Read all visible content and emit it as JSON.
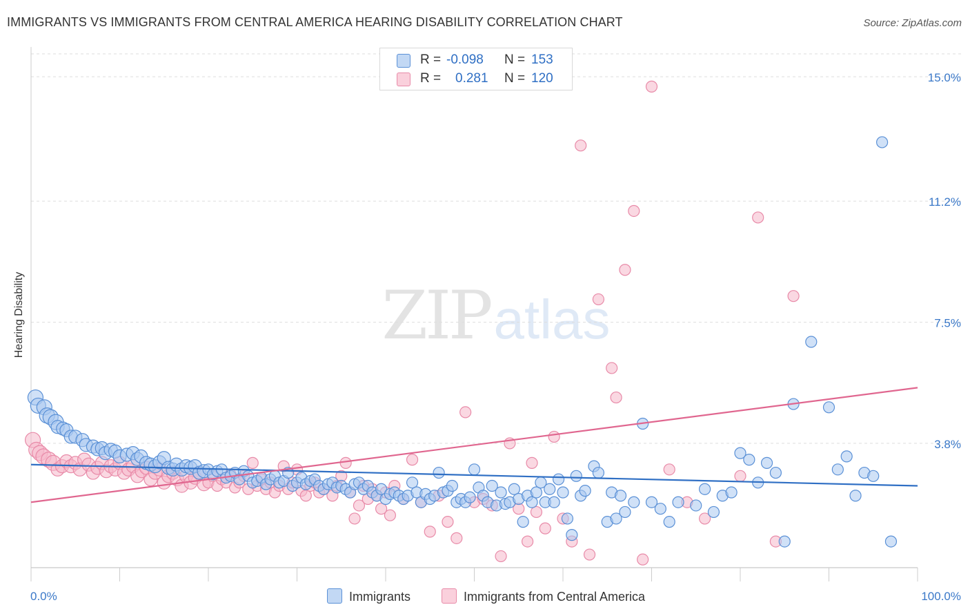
{
  "title": "IMMIGRANTS VS IMMIGRANTS FROM CENTRAL AMERICA HEARING DISABILITY CORRELATION CHART",
  "source": "Source: ZipAtlas.com",
  "watermark": {
    "zip": "ZIP",
    "atlas": "atlas"
  },
  "colors": {
    "blue_fill": "#a9c8f0",
    "blue_stroke": "#5a90d6",
    "blue_line": "#2f6fc4",
    "pink_fill": "#f6b8ca",
    "pink_stroke": "#e88aa8",
    "pink_line": "#e0668f",
    "axis_label": "#3a78c8",
    "grid": "#dddddd"
  },
  "legend": {
    "r_label": "R =",
    "n_label": "N =",
    "rows": [
      {
        "series": "Immigrants",
        "r": "-0.098",
        "n": "153"
      },
      {
        "series": "Immigrants from Central America",
        "r": "0.281",
        "n": "120"
      }
    ]
  },
  "chart_data": {
    "type": "scatter",
    "title": "IMMIGRANTS VS IMMIGRANTS FROM CENTRAL AMERICA HEARING DISABILITY CORRELATION CHART",
    "xlabel": "",
    "ylabel": "Hearing Disability",
    "xlim": [
      0,
      100
    ],
    "ylim": [
      0,
      15.7
    ],
    "x_tick_labels": [
      "0.0%",
      "100.0%"
    ],
    "y_ticks": [
      3.8,
      7.5,
      11.2,
      15.0
    ],
    "y_tick_labels": [
      "3.8%",
      "7.5%",
      "11.2%",
      "15.0%"
    ],
    "grid": "horizontal dashed",
    "legend_position": "top-center",
    "series": [
      {
        "name": "Immigrants",
        "r": -0.098,
        "n": 153,
        "trend": {
          "x": [
            0,
            100
          ],
          "y": [
            3.15,
            2.5
          ]
        },
        "points": [
          [
            0.5,
            5.2
          ],
          [
            0.8,
            4.95
          ],
          [
            1.5,
            4.9
          ],
          [
            1.8,
            4.65
          ],
          [
            2.2,
            4.6
          ],
          [
            2.8,
            4.45
          ],
          [
            3.0,
            4.3
          ],
          [
            3.6,
            4.25
          ],
          [
            4.0,
            4.2
          ],
          [
            4.5,
            4.0
          ],
          [
            5.0,
            4.0
          ],
          [
            5.8,
            3.9
          ],
          [
            6.2,
            3.75
          ],
          [
            7.0,
            3.7
          ],
          [
            7.5,
            3.62
          ],
          [
            8.0,
            3.65
          ],
          [
            8.4,
            3.5
          ],
          [
            9.0,
            3.6
          ],
          [
            9.5,
            3.55
          ],
          [
            10.0,
            3.4
          ],
          [
            10.8,
            3.45
          ],
          [
            11.5,
            3.5
          ],
          [
            12.0,
            3.32
          ],
          [
            12.4,
            3.4
          ],
          [
            13.0,
            3.2
          ],
          [
            13.5,
            3.15
          ],
          [
            14.0,
            3.1
          ],
          [
            14.5,
            3.22
          ],
          [
            15.0,
            3.35
          ],
          [
            15.5,
            3.05
          ],
          [
            16.0,
            3.0
          ],
          [
            16.4,
            3.15
          ],
          [
            17.0,
            3.0
          ],
          [
            17.5,
            3.1
          ],
          [
            18.0,
            3.05
          ],
          [
            18.5,
            3.1
          ],
          [
            19.0,
            2.9
          ],
          [
            19.5,
            2.95
          ],
          [
            20.0,
            3.0
          ],
          [
            20.5,
            2.85
          ],
          [
            21.0,
            2.95
          ],
          [
            21.5,
            3.0
          ],
          [
            22.0,
            2.75
          ],
          [
            22.5,
            2.8
          ],
          [
            23.0,
            2.9
          ],
          [
            23.5,
            2.7
          ],
          [
            24.0,
            2.95
          ],
          [
            24.5,
            2.8
          ],
          [
            25.0,
            2.6
          ],
          [
            25.5,
            2.65
          ],
          [
            26.0,
            2.75
          ],
          [
            26.5,
            2.55
          ],
          [
            27.0,
            2.7
          ],
          [
            27.5,
            2.8
          ],
          [
            28.0,
            2.6
          ],
          [
            28.5,
            2.65
          ],
          [
            29.0,
            2.9
          ],
          [
            29.5,
            2.5
          ],
          [
            30.0,
            2.6
          ],
          [
            30.5,
            2.75
          ],
          [
            31.0,
            2.55
          ],
          [
            31.5,
            2.65
          ],
          [
            32.0,
            2.7
          ],
          [
            32.5,
            2.5
          ],
          [
            33.0,
            2.4
          ],
          [
            33.5,
            2.55
          ],
          [
            34.0,
            2.6
          ],
          [
            34.5,
            2.45
          ],
          [
            35.0,
            2.5
          ],
          [
            35.5,
            2.4
          ],
          [
            36.0,
            2.3
          ],
          [
            36.5,
            2.55
          ],
          [
            37.0,
            2.6
          ],
          [
            37.5,
            2.4
          ],
          [
            38.0,
            2.5
          ],
          [
            38.5,
            2.3
          ],
          [
            39.0,
            2.2
          ],
          [
            39.5,
            2.4
          ],
          [
            40.0,
            2.1
          ],
          [
            40.5,
            2.25
          ],
          [
            41.0,
            2.3
          ],
          [
            41.5,
            2.2
          ],
          [
            42.0,
            2.1
          ],
          [
            42.5,
            2.2
          ],
          [
            43.0,
            2.6
          ],
          [
            43.5,
            2.3
          ],
          [
            44.0,
            2.0
          ],
          [
            44.5,
            2.25
          ],
          [
            45.0,
            2.1
          ],
          [
            45.5,
            2.2
          ],
          [
            46.0,
            2.9
          ],
          [
            46.5,
            2.3
          ],
          [
            47.0,
            2.35
          ],
          [
            47.5,
            2.5
          ],
          [
            48.0,
            2.0
          ],
          [
            48.5,
            2.1
          ],
          [
            49.0,
            2.0
          ],
          [
            49.5,
            2.15
          ],
          [
            50.0,
            3.0
          ],
          [
            50.5,
            2.45
          ],
          [
            51.0,
            2.2
          ],
          [
            51.5,
            2.0
          ],
          [
            52.0,
            2.5
          ],
          [
            52.5,
            1.9
          ],
          [
            53.0,
            2.3
          ],
          [
            53.5,
            1.95
          ],
          [
            54.0,
            2.0
          ],
          [
            54.5,
            2.4
          ],
          [
            55.0,
            2.1
          ],
          [
            55.5,
            1.4
          ],
          [
            56.0,
            2.2
          ],
          [
            56.5,
            2.0
          ],
          [
            57.0,
            2.3
          ],
          [
            57.5,
            2.6
          ],
          [
            58.0,
            2.0
          ],
          [
            58.5,
            2.4
          ],
          [
            59.0,
            2.0
          ],
          [
            59.5,
            2.7
          ],
          [
            60.0,
            2.3
          ],
          [
            60.5,
            1.5
          ],
          [
            61.0,
            1.0
          ],
          [
            61.5,
            2.8
          ],
          [
            62.0,
            2.2
          ],
          [
            62.5,
            2.35
          ],
          [
            63.5,
            3.1
          ],
          [
            64.0,
            2.9
          ],
          [
            65.0,
            1.4
          ],
          [
            65.5,
            2.3
          ],
          [
            66.0,
            1.5
          ],
          [
            66.5,
            2.2
          ],
          [
            67.0,
            1.7
          ],
          [
            68.0,
            2.0
          ],
          [
            69.0,
            4.4
          ],
          [
            70.0,
            2.0
          ],
          [
            71.0,
            1.8
          ],
          [
            72.0,
            1.4
          ],
          [
            73.0,
            2.0
          ],
          [
            75.0,
            1.9
          ],
          [
            76.0,
            2.4
          ],
          [
            77.0,
            1.7
          ],
          [
            78.0,
            2.2
          ],
          [
            79.0,
            2.3
          ],
          [
            80.0,
            3.5
          ],
          [
            81.0,
            3.3
          ],
          [
            82.0,
            2.6
          ],
          [
            83.0,
            3.2
          ],
          [
            84.0,
            2.9
          ],
          [
            85.0,
            0.8
          ],
          [
            86.0,
            5.0
          ],
          [
            88.0,
            6.9
          ],
          [
            90.0,
            4.9
          ],
          [
            91.0,
            3.0
          ],
          [
            92.0,
            3.4
          ],
          [
            93.0,
            2.2
          ],
          [
            94.0,
            2.9
          ],
          [
            95.0,
            2.8
          ],
          [
            96.0,
            13.0
          ],
          [
            97.0,
            0.8
          ]
        ]
      },
      {
        "name": "Immigrants from Central America",
        "r": 0.281,
        "n": 120,
        "trend": {
          "x": [
            0,
            100
          ],
          "y": [
            2.0,
            5.5
          ]
        },
        "points": [
          [
            0.2,
            3.9
          ],
          [
            0.6,
            3.6
          ],
          [
            1.0,
            3.5
          ],
          [
            1.4,
            3.4
          ],
          [
            2.0,
            3.3
          ],
          [
            2.5,
            3.2
          ],
          [
            3.0,
            3.0
          ],
          [
            3.5,
            3.1
          ],
          [
            4.0,
            3.25
          ],
          [
            4.5,
            3.1
          ],
          [
            5.0,
            3.2
          ],
          [
            5.5,
            3.0
          ],
          [
            6.0,
            3.3
          ],
          [
            6.5,
            3.15
          ],
          [
            7.0,
            2.9
          ],
          [
            7.5,
            3.05
          ],
          [
            8.0,
            3.2
          ],
          [
            8.5,
            2.95
          ],
          [
            9.0,
            3.1
          ],
          [
            9.5,
            3.0
          ],
          [
            10.0,
            3.2
          ],
          [
            10.5,
            2.9
          ],
          [
            11.0,
            3.0
          ],
          [
            11.5,
            3.1
          ],
          [
            12.0,
            2.8
          ],
          [
            12.5,
            2.95
          ],
          [
            13.0,
            3.05
          ],
          [
            13.5,
            2.7
          ],
          [
            14.0,
            2.9
          ],
          [
            14.5,
            3.0
          ],
          [
            15.0,
            2.6
          ],
          [
            15.5,
            2.8
          ],
          [
            16.0,
            2.9
          ],
          [
            16.5,
            2.7
          ],
          [
            17.0,
            2.5
          ],
          [
            17.5,
            2.8
          ],
          [
            18.0,
            2.6
          ],
          [
            18.5,
            2.75
          ],
          [
            19.0,
            2.9
          ],
          [
            19.5,
            2.55
          ],
          [
            20.0,
            2.6
          ],
          [
            20.5,
            2.8
          ],
          [
            21.0,
            2.5
          ],
          [
            21.5,
            2.7
          ],
          [
            22.0,
            2.6
          ],
          [
            22.5,
            2.85
          ],
          [
            23.0,
            2.45
          ],
          [
            23.5,
            2.6
          ],
          [
            24.0,
            2.8
          ],
          [
            24.5,
            2.4
          ],
          [
            25.0,
            3.2
          ],
          [
            25.5,
            2.5
          ],
          [
            26.0,
            2.7
          ],
          [
            26.5,
            2.4
          ],
          [
            27.0,
            2.6
          ],
          [
            27.5,
            2.3
          ],
          [
            28.0,
            2.5
          ],
          [
            28.5,
            3.1
          ],
          [
            29.0,
            2.4
          ],
          [
            29.5,
            2.6
          ],
          [
            30.0,
            3.0
          ],
          [
            30.5,
            2.35
          ],
          [
            31.0,
            2.2
          ],
          [
            31.5,
            2.5
          ],
          [
            32.0,
            2.6
          ],
          [
            32.5,
            2.3
          ],
          [
            33.0,
            2.4
          ],
          [
            34.0,
            2.2
          ],
          [
            34.5,
            2.5
          ],
          [
            35.0,
            2.8
          ],
          [
            35.5,
            3.2
          ],
          [
            36.0,
            2.3
          ],
          [
            36.5,
            1.5
          ],
          [
            37.0,
            1.9
          ],
          [
            37.5,
            2.5
          ],
          [
            38.0,
            2.1
          ],
          [
            38.5,
            2.4
          ],
          [
            39.0,
            2.2
          ],
          [
            39.5,
            1.8
          ],
          [
            40.0,
            2.3
          ],
          [
            40.5,
            1.6
          ],
          [
            41.0,
            2.5
          ],
          [
            42.0,
            2.1
          ],
          [
            43.0,
            3.3
          ],
          [
            44.0,
            2.0
          ],
          [
            45.0,
            1.1
          ],
          [
            46.0,
            2.2
          ],
          [
            47.0,
            1.4
          ],
          [
            48.0,
            0.9
          ],
          [
            49.0,
            4.75
          ],
          [
            50.0,
            2.0
          ],
          [
            51.0,
            2.1
          ],
          [
            52.0,
            1.9
          ],
          [
            53.0,
            0.35
          ],
          [
            54.0,
            3.8
          ],
          [
            55.0,
            1.8
          ],
          [
            56.0,
            0.8
          ],
          [
            56.5,
            3.2
          ],
          [
            57.0,
            1.7
          ],
          [
            58.0,
            1.2
          ],
          [
            59.0,
            4.0
          ],
          [
            60.0,
            1.5
          ],
          [
            61.0,
            0.8
          ],
          [
            62.0,
            12.9
          ],
          [
            63.0,
            0.4
          ],
          [
            64.0,
            8.2
          ],
          [
            65.5,
            6.1
          ],
          [
            66.0,
            5.2
          ],
          [
            67.0,
            9.1
          ],
          [
            68.0,
            10.9
          ],
          [
            69.0,
            0.25
          ],
          [
            70.0,
            14.7
          ],
          [
            72.0,
            3.0
          ],
          [
            74.0,
            2.0
          ],
          [
            76.0,
            1.5
          ],
          [
            80.0,
            2.8
          ],
          [
            82.0,
            10.7
          ],
          [
            84.0,
            0.8
          ],
          [
            86.0,
            8.3
          ]
        ]
      }
    ]
  }
}
